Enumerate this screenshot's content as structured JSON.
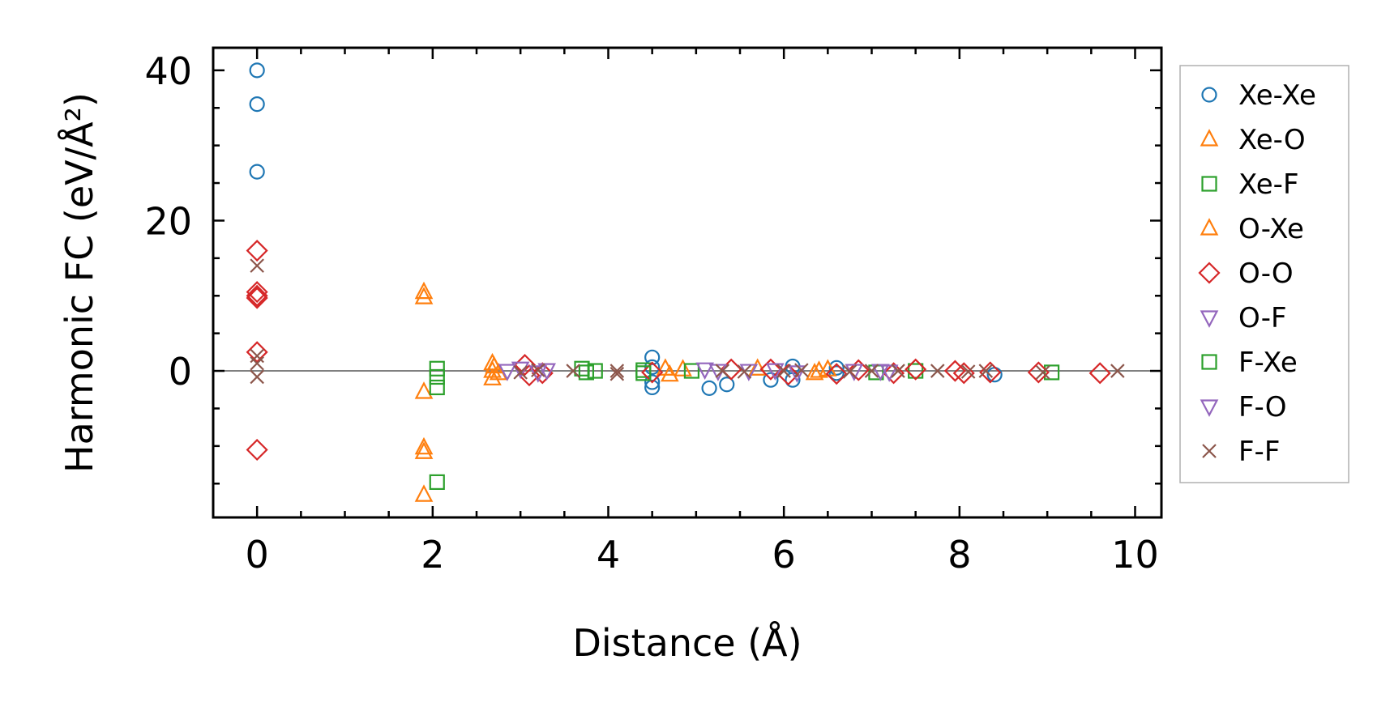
{
  "chart_data": {
    "type": "scatter",
    "xlabel": "Distance (Å)",
    "ylabel": "Harmonic FC (eV/Å²)",
    "xlim": [
      -0.5,
      10.3
    ],
    "ylim": [
      -19.5,
      43
    ],
    "x_ticks": [
      0,
      2,
      4,
      6,
      8,
      10
    ],
    "x_tick_labels": [
      "0",
      "2",
      "4",
      "6",
      "8",
      "10"
    ],
    "y_ticks": [
      0,
      20,
      40
    ],
    "y_tick_labels": [
      "0",
      "20",
      "40"
    ],
    "zero_line": true,
    "grid": false,
    "legend_position": "outside-right",
    "series": [
      {
        "name": "Xe-Xe",
        "marker": "circle",
        "color": "#1f77b4",
        "points": [
          [
            0,
            40
          ],
          [
            0,
            35.5
          ],
          [
            0,
            26.5
          ],
          [
            4.5,
            1.8
          ],
          [
            4.5,
            -2.2
          ],
          [
            4.5,
            0.5
          ],
          [
            4.5,
            -1.5
          ],
          [
            5.15,
            -2.3
          ],
          [
            5.35,
            -1.8
          ],
          [
            5.85,
            -1.2
          ],
          [
            6.1,
            0.6
          ],
          [
            6.1,
            -1.2
          ],
          [
            6.6,
            0.4
          ],
          [
            6.6,
            -0.3
          ],
          [
            8.4,
            -0.5
          ]
        ]
      },
      {
        "name": "Xe-O",
        "marker": "triangle-up",
        "color": "#ff7f0e",
        "points": [
          [
            1.9,
            10.5
          ],
          [
            1.9,
            9.8
          ],
          [
            1.9,
            -2.8
          ],
          [
            1.9,
            -10.2
          ],
          [
            1.9,
            -10.8
          ],
          [
            1.9,
            -16.5
          ],
          [
            2.68,
            1
          ],
          [
            2.68,
            0
          ],
          [
            2.68,
            -1
          ],
          [
            4.65,
            0.3
          ],
          [
            4.85,
            0.2
          ],
          [
            6.35,
            -0.3
          ],
          [
            6.5,
            0.2
          ]
        ]
      },
      {
        "name": "Xe-F",
        "marker": "square",
        "color": "#2ca02c",
        "points": [
          [
            2.05,
            0.3
          ],
          [
            2.05,
            -0.8
          ],
          [
            2.05,
            -2.2
          ],
          [
            2.05,
            -14.8
          ],
          [
            3.7,
            0.3
          ],
          [
            3.85,
            0
          ],
          [
            4.4,
            0.1
          ],
          [
            4.95,
            0
          ],
          [
            7.05,
            -0.2
          ],
          [
            7.5,
            0
          ],
          [
            9.05,
            -0.2
          ]
        ]
      },
      {
        "name": "O-Xe",
        "marker": "triangle-up",
        "color": "#ff7f0e",
        "points": [
          [
            2.7,
            0.6
          ],
          [
            2.75,
            -0.3
          ],
          [
            4.7,
            -0.5
          ],
          [
            5.7,
            0.3
          ],
          [
            6.4,
            0
          ]
        ]
      },
      {
        "name": "O-O",
        "marker": "diamond",
        "color": "#d62728",
        "points": [
          [
            0,
            16
          ],
          [
            0,
            10.5
          ],
          [
            0,
            10
          ],
          [
            0,
            9.7
          ],
          [
            0,
            2.5
          ],
          [
            0,
            -10.5
          ],
          [
            3.05,
            0.8
          ],
          [
            3.1,
            -0.6
          ],
          [
            3.25,
            -0.3
          ],
          [
            4.5,
            -0.2
          ],
          [
            5.4,
            0.2
          ],
          [
            5.85,
            0.2
          ],
          [
            6.05,
            -0.5
          ],
          [
            6.6,
            -0.4
          ],
          [
            6.85,
            0.1
          ],
          [
            7.25,
            -0.3
          ],
          [
            7.5,
            0.2
          ],
          [
            7.95,
            0
          ],
          [
            8.05,
            -0.3
          ],
          [
            8.35,
            -0.2
          ],
          [
            8.9,
            -0.2
          ],
          [
            9.6,
            -0.3
          ]
        ]
      },
      {
        "name": "O-F",
        "marker": "triangle-down",
        "color": "#9467bd",
        "points": [
          [
            2.85,
            0
          ],
          [
            3.0,
            0.3
          ],
          [
            3.3,
            0.1
          ],
          [
            5.1,
            0.2
          ],
          [
            5.6,
            0
          ],
          [
            5.9,
            0.1
          ],
          [
            6.8,
            0
          ],
          [
            7.2,
            -0.1
          ]
        ]
      },
      {
        "name": "F-Xe",
        "marker": "square",
        "color": "#2ca02c",
        "points": [
          [
            3.75,
            -0.2
          ],
          [
            4.4,
            -0.3
          ]
        ]
      },
      {
        "name": "F-O",
        "marker": "triangle-down",
        "color": "#9467bd",
        "points": [
          [
            3.2,
            -0.2
          ],
          [
            5.25,
            0
          ],
          [
            6.15,
            -0.2
          ],
          [
            7.1,
            0
          ]
        ]
      },
      {
        "name": "F-F",
        "marker": "x",
        "color": "#8c564b",
        "points": [
          [
            0,
            14
          ],
          [
            0,
            2
          ],
          [
            0,
            1
          ],
          [
            0,
            -0.8
          ],
          [
            3.0,
            -0.2
          ],
          [
            3.2,
            0.1
          ],
          [
            3.6,
            0
          ],
          [
            4.1,
            0
          ],
          [
            4.1,
            -0.4
          ],
          [
            5.3,
            0
          ],
          [
            5.55,
            -0.1
          ],
          [
            6.0,
            0
          ],
          [
            6.2,
            0.1
          ],
          [
            6.75,
            -0.1
          ],
          [
            7.0,
            0
          ],
          [
            7.3,
            0
          ],
          [
            7.75,
            0
          ],
          [
            8.1,
            -0.1
          ],
          [
            8.3,
            0
          ],
          [
            8.95,
            -0.2
          ],
          [
            9.8,
            0
          ]
        ]
      }
    ]
  }
}
